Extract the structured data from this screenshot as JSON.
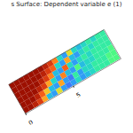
{
  "chart_data": {
    "type": "heatmap",
    "title": "s Surface: Dependent variable e (1)",
    "xlim": [
      0,
      10
    ],
    "xticks": [
      0,
      5
    ],
    "ylim": [
      0,
      6
    ],
    "tick_labels": "x",
    "x": [
      0,
      0.5,
      1,
      1.5,
      2,
      2.5,
      3,
      3.5,
      4,
      4.5,
      5,
      5.5,
      6,
      6.5,
      7,
      7.5,
      8,
      8.5,
      9,
      9.5
    ],
    "y": [
      0,
      1,
      2,
      3,
      4,
      5
    ],
    "color_range": [
      0,
      1
    ],
    "cells": [
      [
        0.95,
        0.95,
        0.9,
        0.85,
        0.7,
        0.25,
        0.2,
        0.6,
        0.2,
        0.15,
        0.2,
        0.3,
        0.2,
        0.25,
        0.3,
        0.35,
        0.35,
        0.35,
        0.4,
        0.4
      ],
      [
        0.95,
        0.95,
        0.95,
        0.9,
        0.8,
        0.65,
        0.25,
        0.2,
        0.7,
        0.2,
        0.15,
        0.35,
        0.2,
        0.3,
        0.3,
        0.35,
        0.35,
        0.35,
        0.4,
        0.4
      ],
      [
        0.95,
        0.95,
        0.95,
        0.95,
        0.9,
        0.85,
        0.7,
        0.3,
        0.2,
        0.75,
        0.25,
        0.2,
        0.4,
        0.25,
        0.3,
        0.3,
        0.35,
        0.35,
        0.35,
        0.4
      ],
      [
        0.95,
        0.95,
        0.95,
        0.95,
        0.95,
        0.9,
        0.85,
        0.75,
        0.25,
        0.2,
        0.8,
        0.3,
        0.2,
        0.3,
        0.35,
        0.3,
        0.35,
        0.35,
        0.35,
        0.35
      ],
      [
        0.95,
        0.95,
        0.95,
        0.95,
        0.95,
        0.95,
        0.9,
        0.85,
        0.8,
        0.3,
        0.2,
        0.7,
        0.25,
        0.2,
        0.3,
        0.35,
        0.3,
        0.35,
        0.35,
        0.35
      ],
      [
        0.95,
        0.95,
        0.95,
        0.95,
        0.95,
        0.95,
        0.95,
        0.9,
        0.85,
        0.75,
        0.3,
        0.2,
        0.6,
        0.3,
        0.25,
        0.3,
        0.35,
        0.3,
        0.35,
        0.35
      ]
    ]
  }
}
